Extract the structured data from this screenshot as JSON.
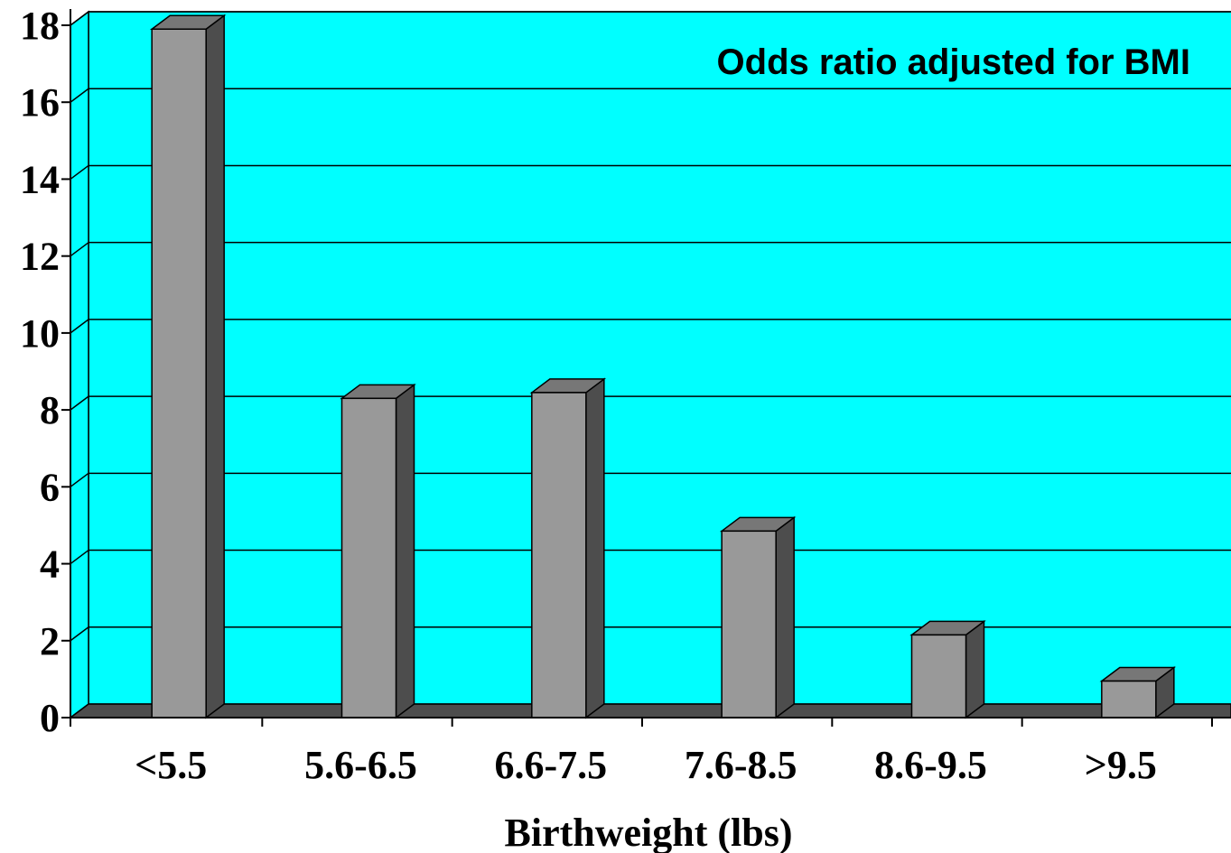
{
  "chart_data": {
    "type": "bar",
    "categories": [
      "<5.5",
      "5.6-6.5",
      "6.6-7.5",
      "7.6-8.5",
      "8.6-9.5",
      ">9.5"
    ],
    "series": [
      {
        "name": "Odds ratio adjusted for BMI",
        "values": [
          17.9,
          8.3,
          8.45,
          4.85,
          2.15,
          0.95
        ]
      }
    ],
    "title": "",
    "xlabel": "Birthweight (lbs)",
    "ylabel": "",
    "ylim": [
      0,
      18
    ],
    "yticks": [
      0,
      2,
      4,
      6,
      8,
      10,
      12,
      14,
      16,
      18
    ],
    "grid": true,
    "legend_position": "top-right",
    "three_d": true,
    "colors": {
      "plot_background": "#00ffff",
      "floor": "#4d4d4d",
      "bar_front": "#999999",
      "bar_side": "#4d4d4d",
      "bar_top": "#777777",
      "grid": "#000000"
    }
  }
}
